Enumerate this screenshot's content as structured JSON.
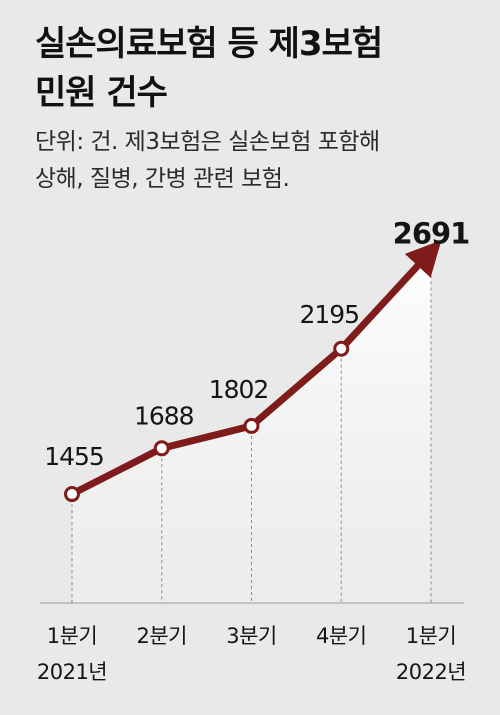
{
  "header": {
    "title_line1": "실손의료보험 등 제3보험",
    "title_line2": "민원 건수",
    "note_line1": "단위: 건. 제3보험은 실손보험 포함해",
    "note_line2": "상해, 질병, 간병 관련 보험."
  },
  "colors": {
    "line": "#7f1b1b",
    "background": "#e9e9ea",
    "area": "#fbfbfb"
  },
  "chart_data": {
    "type": "line",
    "title": "실손의료보험 등 제3보험 민원 건수",
    "subtitle": "단위: 건. 제3보험은 실손보험 포함해 상해, 질병, 간병 관련 보험.",
    "categories": [
      "1분기",
      "2분기",
      "3분기",
      "4분기",
      "1분기"
    ],
    "year_labels": [
      "2021년",
      "",
      "",
      "",
      "2022년"
    ],
    "values": [
      1455,
      1688,
      1802,
      2195,
      2691
    ],
    "value_labels": [
      "1455",
      "1688",
      "1802",
      "2195",
      "2691"
    ],
    "xlabel": "",
    "ylabel": "",
    "ylim": [
      900,
      2800
    ],
    "grid": false,
    "legend": "none"
  }
}
